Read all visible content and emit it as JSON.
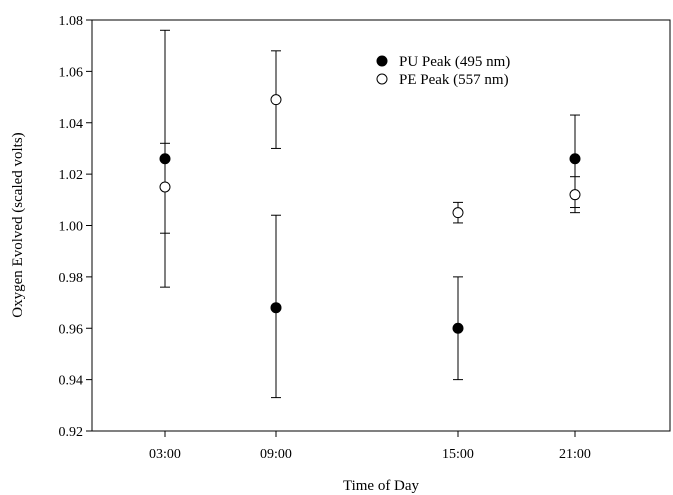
{
  "chart_data": {
    "type": "scatter",
    "title": "",
    "xlabel": "Time of Day",
    "ylabel": "Oxygen Evolved (scaled volts)",
    "categories": [
      "03:00",
      "09:00",
      "15:00",
      "21:00"
    ],
    "ylim": [
      0.92,
      1.08
    ],
    "yticks": [
      "0.92",
      "0.94",
      "0.96",
      "0.98",
      "1.00",
      "1.02",
      "1.04",
      "1.06",
      "1.08"
    ],
    "grid": false,
    "legend_position": "top-right",
    "series": [
      {
        "name": "PU Peak (495 nm)",
        "marker": "filled-circle",
        "color": "#000000",
        "values": [
          1.026,
          0.968,
          0.96,
          1.026
        ],
        "err_low": [
          0.976,
          0.933,
          0.94,
          1.007
        ],
        "err_high": [
          1.076,
          1.004,
          0.98,
          1.043
        ]
      },
      {
        "name": "PE Peak (557 nm)",
        "marker": "open-circle",
        "color": "#000000",
        "values": [
          1.015,
          1.049,
          1.005,
          1.012
        ],
        "err_low": [
          0.997,
          1.03,
          1.001,
          1.005
        ],
        "err_high": [
          1.032,
          1.068,
          1.009,
          1.019
        ]
      }
    ]
  }
}
